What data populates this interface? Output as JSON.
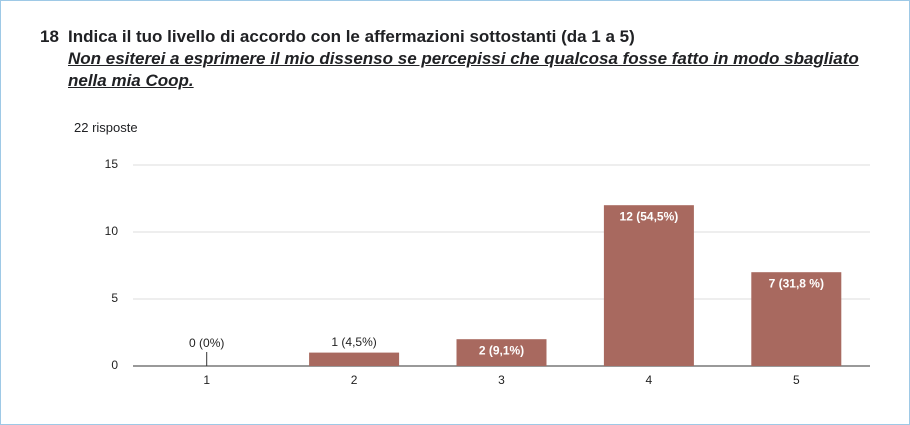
{
  "chart_data": {
    "type": "bar",
    "question_number": "18",
    "title": "Indica il tuo livello di accordo con le affermazioni sottostanti (da 1 a 5)",
    "subtitle": "Non esiterei a esprimere il mio dissenso se percepissi che qualcosa fosse fatto in modo sbagliato nella mia Coop.",
    "responses": "22 risposte",
    "categories": [
      "1",
      "2",
      "3",
      "4",
      "5"
    ],
    "values": [
      0,
      1,
      2,
      12,
      7
    ],
    "value_labels": [
      "0 (0%)",
      "1 (4,5%)",
      "2 (9,1%)",
      "12 (54,5%)",
      "7 (31,8 %)"
    ],
    "color": "#a8695f",
    "ylim": [
      0,
      15
    ],
    "yticks": [
      0,
      5,
      10,
      15
    ],
    "grid": true
  }
}
